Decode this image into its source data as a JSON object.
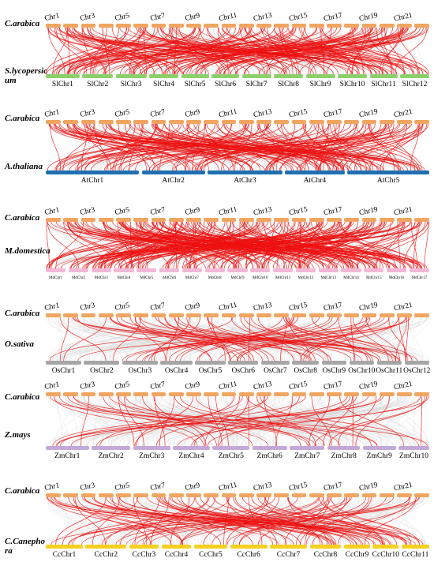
{
  "colors": {
    "grey_link": "#d3d3d3",
    "red_link": "#ee1111"
  },
  "panels": [
    {
      "top_species": "C.arabica",
      "bottom_species": "S.lycopersic um",
      "top_color": "#f0a560",
      "bottom_color": "#8cd06a",
      "top_chr_labels": [
        "Chr1",
        "Chr3",
        "Chr5",
        "Chr7",
        "Chr9",
        "Chr11",
        "Chr13",
        "Chr15",
        "Chr17",
        "Chr19",
        "Chr21"
      ],
      "bottom_chr_labels": [
        "SlChr1",
        "SlChr2",
        "SlChr3",
        "SlChr4",
        "SlChr5",
        "SlChr6",
        "SlChr7",
        "SlChr8",
        "SlChr9",
        "SlChr10",
        "SlChr11",
        "SlChr12"
      ]
    },
    {
      "top_species": "C.arabica",
      "bottom_species": "A.thaliana",
      "top_color": "#f0a560",
      "bottom_color": "#1f6fb2",
      "top_chr_labels": [
        "Chr1",
        "Chr3",
        "Chr5",
        "Chr7",
        "Chr9",
        "Chr11",
        "Chr13",
        "Chr15",
        "Chr17",
        "Chr19",
        "Chr21"
      ],
      "bottom_chr_labels": [
        "AtChr1",
        "AtChr2",
        "AtChr3",
        "AtChr4",
        "AtChr5"
      ]
    },
    {
      "top_species": "C.arabica",
      "bottom_species": "M.domestica",
      "top_color": "#f0a560",
      "bottom_color": "#f2b8d6",
      "top_chr_labels": [
        "Chr1",
        "Chr3",
        "Chr5",
        "Chr7",
        "Chr9",
        "Chr11",
        "Chr13",
        "Chr15",
        "Chr17",
        "Chr19",
        "Chr21"
      ],
      "bottom_chr_labels": [
        "MdChr1",
        "MdChr2",
        "MdChr3",
        "MdChr4",
        "MdChr5",
        "MdChr6",
        "MdChr7",
        "MdChr8",
        "MdChr9",
        "MdChr10",
        "MdChr11",
        "MdChr12",
        "MdChr13",
        "MdChr14",
        "MdChr15",
        "MdChr16",
        "MdChr17"
      ]
    },
    {
      "top_species": "C.arabica",
      "bottom_species": "O.sativa",
      "top_color": "#f0a560",
      "bottom_color": "#a6a6a6",
      "top_chr_labels": [
        "Chr1",
        "Chr3",
        "Chr5",
        "Chr7",
        "Chr9",
        "Chr11",
        "Chr13",
        "Chr15",
        "Chr17",
        "Chr19",
        "Chr21"
      ],
      "bottom_chr_labels": [
        "OsChr1",
        "OsChr2",
        "OsChr3",
        "OsChr4",
        "OsChr5",
        "OsChr6",
        "OsChr7",
        "OsChr8",
        "OsChr9",
        "OsChr10",
        "OsChr11",
        "OsChr12"
      ]
    },
    {
      "top_species": "C.arabica",
      "bottom_species": "Z.mays",
      "top_color": "#f0a560",
      "bottom_color": "#c4a8d8",
      "top_chr_labels": [
        "Chr1",
        "Chr3",
        "Chr5",
        "Chr7",
        "Chr9",
        "Chr11",
        "Chr13",
        "Chr15",
        "Chr17",
        "Chr19",
        "Chr21"
      ],
      "bottom_chr_labels": [
        "ZmChr1",
        "ZmChr2",
        "ZmChr3",
        "ZmChr4",
        "ZmChr5",
        "ZmChr6",
        "ZmChr7",
        "ZmChr8",
        "ZmChr9",
        "ZmChr10"
      ]
    },
    {
      "top_species": "C.arabica",
      "bottom_species": "C.Canepho ra",
      "top_color": "#f0a560",
      "bottom_color": "#f5d020",
      "top_chr_labels": [
        "Chr1",
        "Chr3",
        "Chr5",
        "Chr7",
        "Chr9",
        "Chr11",
        "Chr13",
        "Chr15",
        "Chr17",
        "Chr19",
        "Chr21"
      ],
      "bottom_chr_labels": [
        "CcChr1",
        "CcChr2",
        "CcChr3",
        "CcChr4",
        "CcChr5",
        "CcChr6",
        "CcChr7",
        "CcChr8",
        "CcChr9",
        "CcChr10",
        "CcChr11"
      ]
    }
  ]
}
